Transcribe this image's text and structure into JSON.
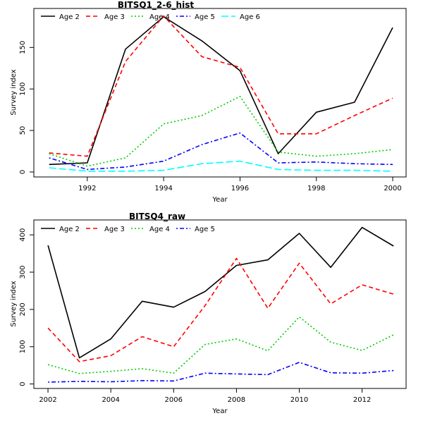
{
  "chart_data": [
    {
      "type": "line",
      "title": "BITSQ1_2-6_hist",
      "xlabel": "Year",
      "ylabel": "Survey index",
      "xlim": [
        1990.6,
        2000.35
      ],
      "ylim": [
        -6,
        197
      ],
      "xticks": [
        1992,
        1994,
        1996,
        1998,
        2000
      ],
      "yticks": [
        0,
        50,
        100,
        150
      ],
      "legend_position": "top",
      "x": [
        1991,
        1992,
        1993,
        1994,
        1995,
        1996,
        1997,
        1998,
        1999,
        2000
      ],
      "series": [
        {
          "name": "Age 2",
          "color": "#000000",
          "dash": "solid",
          "values": [
            9,
            11,
            148,
            187,
            158,
            122,
            22,
            72,
            84,
            174
          ]
        },
        {
          "name": "Age 3",
          "color": "#ff0000",
          "dash": "dashed",
          "values": [
            23,
            19,
            133,
            188,
            139,
            126,
            46,
            46,
            68,
            89
          ]
        },
        {
          "name": "Age 4",
          "color": "#00cc00",
          "dash": "dotted",
          "values": [
            22,
            7,
            17,
            58,
            68,
            91,
            24,
            19,
            22,
            27
          ]
        },
        {
          "name": "Age 5",
          "color": "#0000ff",
          "dash": "dotdash",
          "values": [
            17,
            3,
            6,
            13,
            33,
            47,
            11,
            12,
            10,
            9
          ]
        },
        {
          "name": "Age 6",
          "color": "#00ffff",
          "dash": "longdash",
          "values": [
            5,
            1,
            1,
            2,
            10,
            13,
            3,
            2,
            2,
            1
          ]
        }
      ]
    },
    {
      "type": "line",
      "title": "BITSQ4_raw",
      "xlabel": "Year",
      "ylabel": "Survey index",
      "xlim": [
        2001.55,
        2013.4
      ],
      "ylim": [
        -12,
        440
      ],
      "xticks": [
        2002,
        2004,
        2006,
        2008,
        2010,
        2012
      ],
      "yticks": [
        0,
        100,
        200,
        300,
        400
      ],
      "legend_position": "top",
      "x": [
        2002,
        2003,
        2004,
        2005,
        2006,
        2007,
        2008,
        2009,
        2010,
        2011,
        2012,
        2013
      ],
      "series": [
        {
          "name": "Age 2",
          "color": "#000000",
          "dash": "solid",
          "values": [
            372,
            70,
            121,
            222,
            206,
            248,
            318,
            333,
            404,
            313,
            420,
            370
          ]
        },
        {
          "name": "Age 3",
          "color": "#ff0000",
          "dash": "dashed",
          "values": [
            150,
            60,
            76,
            127,
            100,
            210,
            337,
            203,
            324,
            215,
            266,
            241
          ]
        },
        {
          "name": "Age 4",
          "color": "#00cc00",
          "dash": "dotted",
          "values": [
            52,
            28,
            34,
            41,
            29,
            106,
            121,
            89,
            180,
            112,
            90,
            132
          ]
        },
        {
          "name": "Age 5",
          "color": "#0000ff",
          "dash": "dotdash",
          "values": [
            5,
            7,
            6,
            9,
            8,
            29,
            27,
            25,
            58,
            30,
            29,
            36
          ]
        }
      ]
    }
  ]
}
